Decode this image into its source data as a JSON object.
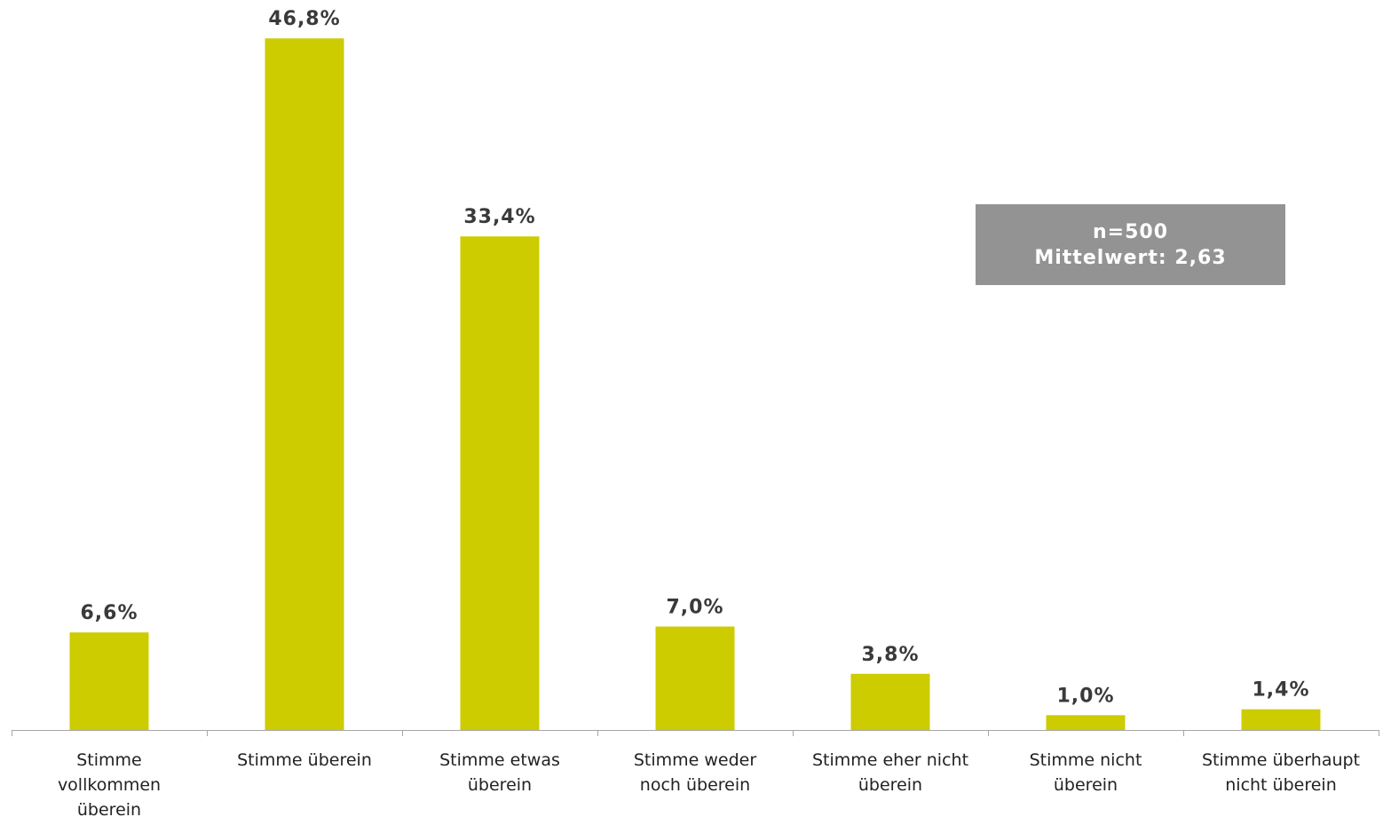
{
  "chart_data": {
    "type": "bar",
    "title": "",
    "xlabel": "",
    "ylabel": "",
    "ylim": [
      0,
      50
    ],
    "grid": false,
    "legend": "none",
    "categories": [
      [
        "Stimme",
        "vollkommen",
        "überein"
      ],
      [
        "Stimme überein"
      ],
      [
        "Stimme etwas",
        "überein"
      ],
      [
        "Stimme weder",
        "noch überein"
      ],
      [
        "Stimme eher nicht",
        "überein"
      ],
      [
        "Stimme nicht",
        "überein"
      ],
      [
        "Stimme überhaupt",
        "nicht überein"
      ]
    ],
    "values": [
      6.6,
      46.8,
      33.4,
      7.0,
      3.8,
      1.0,
      1.4
    ],
    "value_labels": [
      "6,6%",
      "46,8%",
      "33,4%",
      "7,0%",
      "3,8%",
      "1,0%",
      "1,4%"
    ],
    "bar_color": "#CCCC00"
  },
  "info_box": {
    "line1": "n=500",
    "line2": "Mittelwert: 2,63",
    "background": "#939393"
  },
  "colors": {
    "axis": "#a6a6a6",
    "value_text": "#3a3a3a",
    "category_text": "#222222"
  }
}
